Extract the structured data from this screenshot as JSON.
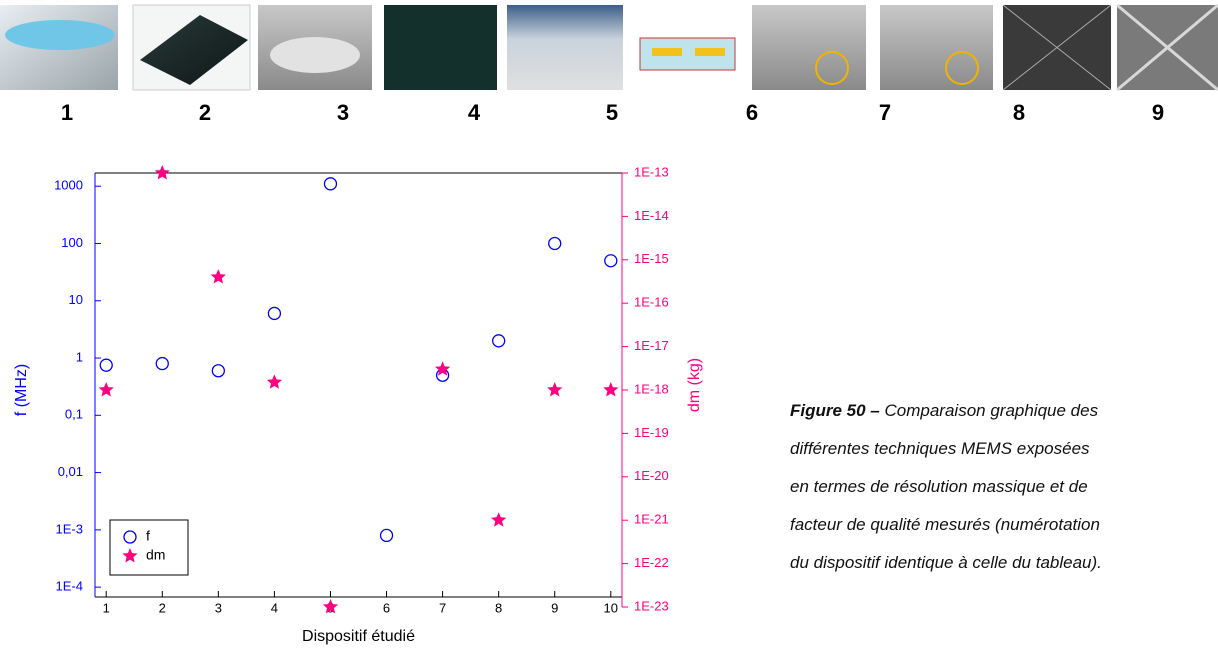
{
  "figures": {
    "labels": [
      "1",
      "2",
      "3",
      "4",
      "5",
      "6",
      "7",
      "8",
      "9"
    ]
  },
  "chart_data": {
    "type": "scatter",
    "x_label": "Dispositif étudié",
    "y_label": "f (MHz)",
    "y2_label": "dm (kg)",
    "x": [
      1,
      2,
      3,
      4,
      5,
      6,
      7,
      8,
      9,
      10
    ],
    "xlim": [
      0.8,
      10.2
    ],
    "xticks": [
      1,
      2,
      3,
      4,
      5,
      6,
      7,
      8,
      9,
      10
    ],
    "ylog": true,
    "ylim": [
      4.5e-05,
      1700
    ],
    "yticks": [
      {
        "value": 0.0001,
        "label": "1E-4"
      },
      {
        "value": 0.001,
        "label": "1E-3"
      },
      {
        "value": 0.01,
        "label": "0,01"
      },
      {
        "value": 0.1,
        "label": "0,1"
      },
      1,
      10,
      100,
      1000
    ],
    "y2log": true,
    "y2lim": [
      1e-23,
      1e-13
    ],
    "y2ticks": [
      {
        "value": 1e-23,
        "label": "1E-23"
      },
      {
        "value": 1e-22,
        "label": "1E-22"
      },
      {
        "value": 1e-21,
        "label": "1E-21"
      },
      {
        "value": 1e-20,
        "label": "1E-20"
      },
      {
        "value": 1e-19,
        "label": "1E-19"
      },
      {
        "value": 1e-18,
        "label": "1E-18"
      },
      {
        "value": 1e-17,
        "label": "1E-17"
      },
      {
        "value": 1e-16,
        "label": "1E-16"
      },
      {
        "value": 1e-15,
        "label": "1E-15"
      },
      {
        "value": 1e-14,
        "label": "1E-14"
      },
      {
        "value": 1e-13,
        "label": "1E-13"
      }
    ],
    "legend": "lower left",
    "series": [
      {
        "name": "f",
        "color": "#0000ff",
        "marker": "circle",
        "axis": "y",
        "values": [
          0.75,
          0.8,
          0.6,
          6,
          1100,
          0.0008,
          0.5,
          2,
          100,
          50
        ]
      },
      {
        "name": "dm",
        "color": "#ff0080",
        "marker": "star",
        "axis": "y2",
        "values": [
          1e-18,
          1e-13,
          4e-16,
          1.5e-18,
          1e-23,
          null,
          3e-18,
          1e-21,
          1e-18,
          1e-18
        ]
      }
    ]
  },
  "caption": {
    "label": "Figure 50 –",
    "lines": [
      "Comparaison graphique des",
      "différentes techniques MEMS exposées",
      "en termes de résolution massique et de",
      "facteur de qualité mesurés (numérotation",
      "du dispositif identique à celle du tableau)."
    ]
  }
}
